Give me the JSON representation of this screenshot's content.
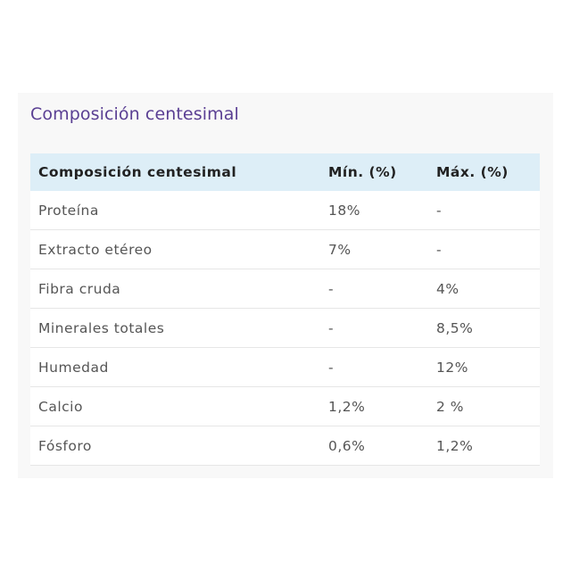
{
  "section": {
    "title": "Composición centesimal"
  },
  "table": {
    "headers": [
      "Composición centesimal",
      "Mín. (%)",
      "Máx. (%)"
    ],
    "rows": [
      [
        "Proteína",
        "18%",
        "-"
      ],
      [
        "Extracto etéreo",
        "7%",
        "-"
      ],
      [
        "Fibra cruda",
        "-",
        "4%"
      ],
      [
        "Minerales totales",
        "-",
        "8,5%"
      ],
      [
        "Humedad",
        "-",
        "12%"
      ],
      [
        "Calcio",
        "1,2%",
        "2 %"
      ],
      [
        "Fósforo",
        "0,6%",
        "1,2%"
      ]
    ]
  },
  "colors": {
    "title": "#5a3f93",
    "header_bg": "#ddeef7",
    "card_bg": "#f8f8f8"
  }
}
